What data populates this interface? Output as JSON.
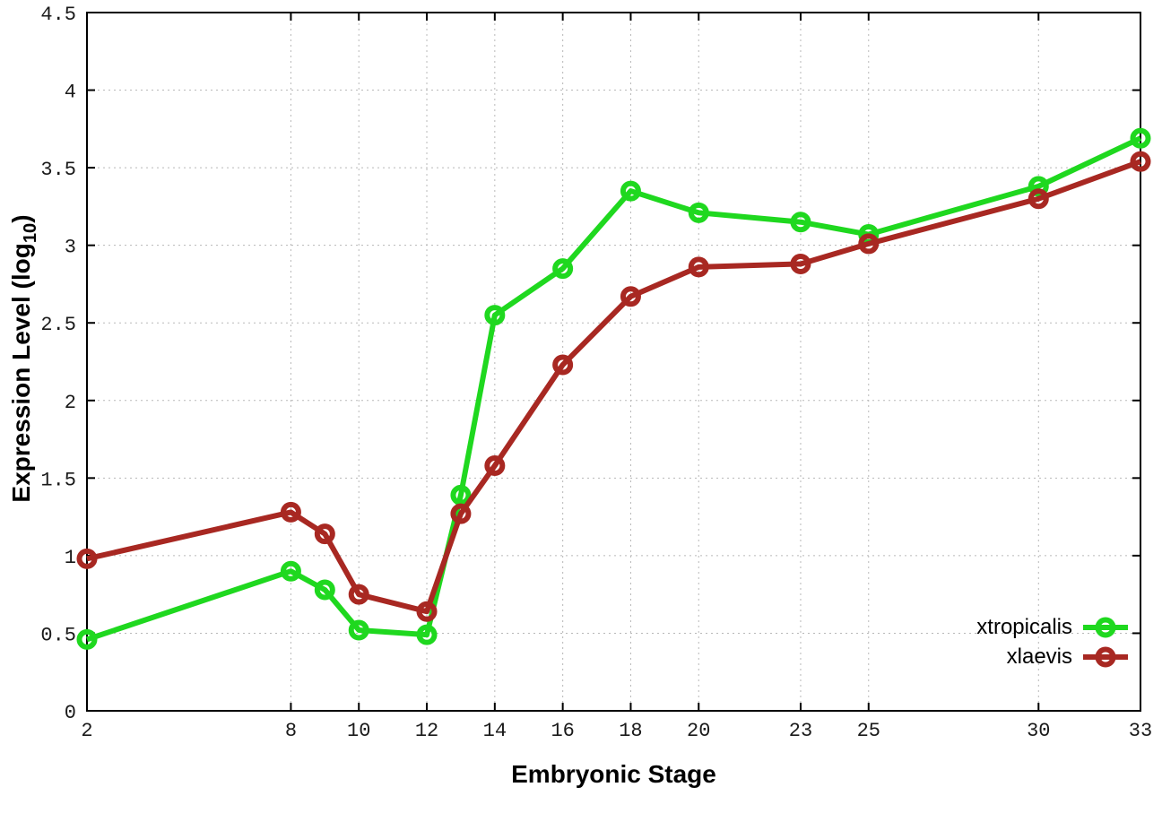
{
  "chart_data": {
    "type": "line",
    "title": "",
    "xlabel": "Embryonic Stage",
    "ylabel": {
      "base": "Expression Level (log",
      "sub": "10",
      "close": ")"
    },
    "xlim": [
      2,
      33
    ],
    "ylim": [
      0,
      4.5
    ],
    "grid": true,
    "legend_position": "inside bottom-right",
    "x": [
      2,
      8,
      9,
      10,
      12,
      13,
      14,
      16,
      18,
      20,
      23,
      25,
      30,
      33
    ],
    "xtick_values": [
      2,
      8,
      10,
      12,
      14,
      16,
      18,
      20,
      23,
      25,
      30,
      33
    ],
    "xtick_labels": [
      "2",
      "8",
      "10",
      "12",
      "14",
      "16",
      "18",
      "20",
      "23",
      "25",
      "30",
      "33"
    ],
    "ytick_values": [
      0,
      0.5,
      1,
      1.5,
      2,
      2.5,
      3,
      3.5,
      4,
      4.5
    ],
    "ytick_labels": [
      "0",
      "0.5",
      "1",
      "1.5",
      "2",
      "2.5",
      "3",
      "3.5",
      "4",
      "4.5"
    ],
    "series": [
      {
        "name": "xtropicalis",
        "color": "#1fd81f",
        "marker": "open-circle",
        "values": [
          0.46,
          0.9,
          0.78,
          0.52,
          0.49,
          1.39,
          2.55,
          2.85,
          3.35,
          3.21,
          3.15,
          3.07,
          3.38,
          3.69
        ]
      },
      {
        "name": "xlaevis",
        "color": "#a82822",
        "marker": "open-circle",
        "values": [
          0.98,
          1.28,
          1.14,
          0.75,
          0.64,
          1.27,
          1.58,
          2.23,
          2.67,
          2.86,
          2.88,
          3.01,
          3.3,
          3.54
        ]
      }
    ],
    "axis_color": "#000000",
    "grid_color": "#b8b8b8",
    "background": "#ffffff"
  }
}
